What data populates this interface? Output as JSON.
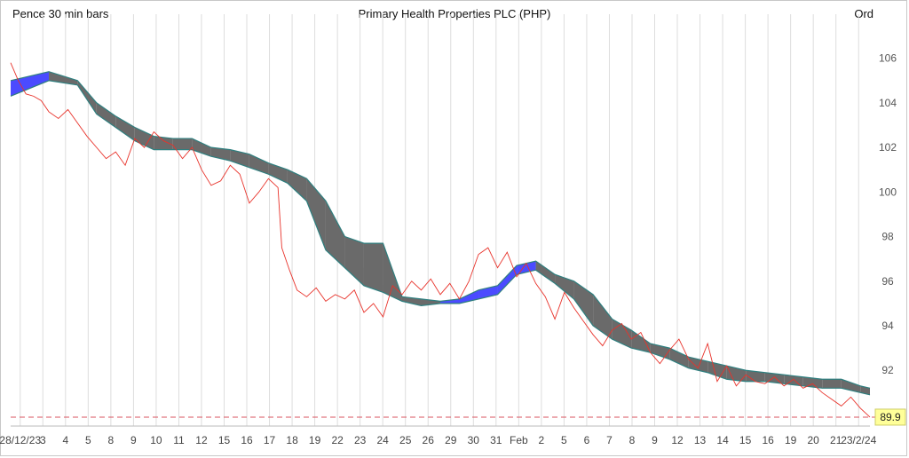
{
  "header": {
    "left": "Pence 30 min bars",
    "title": "Primary Health Properties PLC (PHP)",
    "right": "Ord"
  },
  "chart_data": {
    "type": "line",
    "y_axis": {
      "ticks": [
        92,
        94,
        96,
        98,
        100,
        102,
        104,
        106
      ],
      "range": [
        89.5,
        107.5
      ],
      "side": "right"
    },
    "x_labels": [
      "28/12/23",
      "3",
      "4",
      "5",
      "8",
      "9",
      "10",
      "11",
      "12",
      "15",
      "16",
      "17",
      "18",
      "19",
      "22",
      "23",
      "24",
      "25",
      "26",
      "29",
      "30",
      "31",
      "Feb",
      "2",
      "5",
      "6",
      "7",
      "8",
      "9",
      "12",
      "13",
      "14",
      "15",
      "16",
      "19",
      "20",
      "21",
      "23/2/24"
    ],
    "grid": true,
    "last_price": {
      "value": 89.9,
      "label": "89.9"
    },
    "series": [
      {
        "style": "red-line",
        "color": "#e8332b",
        "values": [
          [
            0,
            105.8
          ],
          [
            0.4,
            105.0
          ],
          [
            0.8,
            104.4
          ],
          [
            1.2,
            104.3
          ],
          [
            1.6,
            104.1
          ],
          [
            2.0,
            103.6
          ],
          [
            2.5,
            103.3
          ],
          [
            3.0,
            103.7
          ],
          [
            3.5,
            103.1
          ],
          [
            4.0,
            102.5
          ],
          [
            4.5,
            102.0
          ],
          [
            5.0,
            101.5
          ],
          [
            5.5,
            101.8
          ],
          [
            6.0,
            101.2
          ],
          [
            6.5,
            102.4
          ],
          [
            7.0,
            102.0
          ],
          [
            7.5,
            102.7
          ],
          [
            8.0,
            102.3
          ],
          [
            8.5,
            102.1
          ],
          [
            9.0,
            101.5
          ],
          [
            9.5,
            102.0
          ],
          [
            10.0,
            101.0
          ],
          [
            10.5,
            100.3
          ],
          [
            11.0,
            100.5
          ],
          [
            11.5,
            101.2
          ],
          [
            12.0,
            100.8
          ],
          [
            12.5,
            99.5
          ],
          [
            13.0,
            100.0
          ],
          [
            13.5,
            100.6
          ],
          [
            14.0,
            100.2
          ],
          [
            14.2,
            97.5
          ],
          [
            14.6,
            96.5
          ],
          [
            15.0,
            95.6
          ],
          [
            15.5,
            95.3
          ],
          [
            16.0,
            95.7
          ],
          [
            16.5,
            95.1
          ],
          [
            17.0,
            95.4
          ],
          [
            17.5,
            95.2
          ],
          [
            18.0,
            95.6
          ],
          [
            18.5,
            94.6
          ],
          [
            19.0,
            95.0
          ],
          [
            19.5,
            94.4
          ],
          [
            20.0,
            95.8
          ],
          [
            20.5,
            95.4
          ],
          [
            21.0,
            96.0
          ],
          [
            21.5,
            95.6
          ],
          [
            22.0,
            96.1
          ],
          [
            22.5,
            95.4
          ],
          [
            23.0,
            95.9
          ],
          [
            23.5,
            95.2
          ],
          [
            24.0,
            96.0
          ],
          [
            24.5,
            97.2
          ],
          [
            25.0,
            97.5
          ],
          [
            25.5,
            96.6
          ],
          [
            26.0,
            97.3
          ],
          [
            26.5,
            96.2
          ],
          [
            27.0,
            96.8
          ],
          [
            27.5,
            95.9
          ],
          [
            28.0,
            95.3
          ],
          [
            28.5,
            94.3
          ],
          [
            29.0,
            95.5
          ],
          [
            29.5,
            94.8
          ],
          [
            30.0,
            94.2
          ],
          [
            30.5,
            93.6
          ],
          [
            31.0,
            93.1
          ],
          [
            31.5,
            93.8
          ],
          [
            32.0,
            94.1
          ],
          [
            32.5,
            93.4
          ],
          [
            33.0,
            93.7
          ],
          [
            33.5,
            92.8
          ],
          [
            34.0,
            92.3
          ],
          [
            34.5,
            92.9
          ],
          [
            35.0,
            93.4
          ],
          [
            35.5,
            92.5
          ],
          [
            36.0,
            92.1
          ],
          [
            36.5,
            93.2
          ],
          [
            37.0,
            91.5
          ],
          [
            37.5,
            92.2
          ],
          [
            38.0,
            91.3
          ],
          [
            38.5,
            91.8
          ],
          [
            39.0,
            91.5
          ],
          [
            39.5,
            91.4
          ],
          [
            40.0,
            91.7
          ],
          [
            40.5,
            91.3
          ],
          [
            41.0,
            91.6
          ],
          [
            41.5,
            91.2
          ],
          [
            42.0,
            91.4
          ],
          [
            42.5,
            91.0
          ],
          [
            43.0,
            90.7
          ],
          [
            43.5,
            90.4
          ],
          [
            44.0,
            90.8
          ],
          [
            44.5,
            90.3
          ],
          [
            45.0,
            89.9
          ]
        ]
      },
      {
        "style": "cloud-upper",
        "values": [
          [
            0,
            105.0
          ],
          [
            2,
            105.4
          ],
          [
            3.5,
            105.0
          ],
          [
            4.5,
            104.0
          ],
          [
            5.5,
            103.4
          ],
          [
            6.5,
            102.9
          ],
          [
            7.5,
            102.5
          ],
          [
            8.5,
            102.4
          ],
          [
            9.5,
            102.4
          ],
          [
            10.5,
            102.0
          ],
          [
            11.5,
            101.9
          ],
          [
            12.5,
            101.7
          ],
          [
            13.5,
            101.3
          ],
          [
            14.5,
            101.0
          ],
          [
            15.5,
            100.6
          ],
          [
            16.5,
            99.6
          ],
          [
            17.5,
            98.0
          ],
          [
            18.5,
            97.7
          ],
          [
            19.5,
            97.7
          ],
          [
            20.5,
            95.3
          ],
          [
            21.5,
            95.2
          ],
          [
            22.5,
            95.1
          ],
          [
            23.5,
            95.2
          ],
          [
            24.5,
            95.6
          ],
          [
            25.5,
            95.8
          ],
          [
            26.5,
            96.7
          ],
          [
            27.5,
            96.9
          ],
          [
            28.5,
            96.3
          ],
          [
            29.5,
            96.0
          ],
          [
            30.5,
            95.4
          ],
          [
            31.5,
            94.3
          ],
          [
            32.5,
            93.8
          ],
          [
            33.5,
            93.2
          ],
          [
            34.5,
            93.0
          ],
          [
            35.5,
            92.6
          ],
          [
            36.5,
            92.4
          ],
          [
            37.5,
            92.2
          ],
          [
            38.5,
            92.0
          ],
          [
            39.5,
            91.9
          ],
          [
            40.5,
            91.8
          ],
          [
            41.5,
            91.7
          ],
          [
            42.5,
            91.6
          ],
          [
            43.5,
            91.6
          ],
          [
            44.5,
            91.3
          ],
          [
            45,
            91.2
          ]
        ]
      },
      {
        "style": "cloud-lower",
        "values": [
          [
            0,
            104.3
          ],
          [
            2,
            105.0
          ],
          [
            3.5,
            104.8
          ],
          [
            4.5,
            103.5
          ],
          [
            5.5,
            102.9
          ],
          [
            6.5,
            102.3
          ],
          [
            7.5,
            101.9
          ],
          [
            8.5,
            101.9
          ],
          [
            9.5,
            101.9
          ],
          [
            10.5,
            101.6
          ],
          [
            11.5,
            101.4
          ],
          [
            12.5,
            101.1
          ],
          [
            13.5,
            100.8
          ],
          [
            14.5,
            100.4
          ],
          [
            15.5,
            99.6
          ],
          [
            16.5,
            97.4
          ],
          [
            17.5,
            96.6
          ],
          [
            18.5,
            95.8
          ],
          [
            19.5,
            95.5
          ],
          [
            20.5,
            95.1
          ],
          [
            21.5,
            94.9
          ],
          [
            22.5,
            95.0
          ],
          [
            23.5,
            95.0
          ],
          [
            24.5,
            95.2
          ],
          [
            25.5,
            95.4
          ],
          [
            26.5,
            96.3
          ],
          [
            27.5,
            96.5
          ],
          [
            28.5,
            95.9
          ],
          [
            29.5,
            95.2
          ],
          [
            30.5,
            94.0
          ],
          [
            31.5,
            93.4
          ],
          [
            32.5,
            93.0
          ],
          [
            33.5,
            92.8
          ],
          [
            34.5,
            92.5
          ],
          [
            35.5,
            92.1
          ],
          [
            36.5,
            91.9
          ],
          [
            37.5,
            91.6
          ],
          [
            38.5,
            91.5
          ],
          [
            39.5,
            91.5
          ],
          [
            40.5,
            91.4
          ],
          [
            41.5,
            91.3
          ],
          [
            42.5,
            91.2
          ],
          [
            43.5,
            91.2
          ],
          [
            44.5,
            91.0
          ],
          [
            45,
            90.9
          ]
        ]
      }
    ]
  },
  "colors": {
    "price": "#e8332b",
    "cloud_bear": "#6a6a6a",
    "cloud_bull": "#4b4bff",
    "edge": "#2f7f7f",
    "grid": "#dddddd",
    "last_line": "#d9535f",
    "last_box": "#ffff99"
  }
}
